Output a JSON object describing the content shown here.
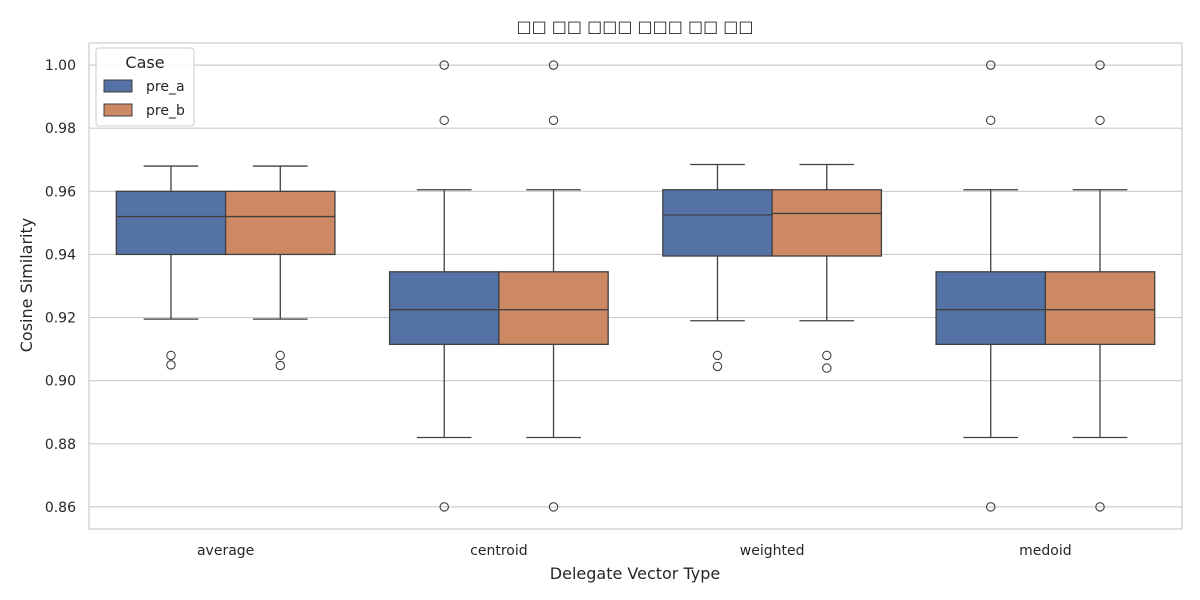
{
  "chart_data": {
    "type": "box",
    "title": "□□ □□ □□□ □□□ □□ □□",
    "xlabel": "Delegate Vector Type",
    "ylabel": "Cosine Similarity",
    "categories": [
      "average",
      "centroid",
      "weighted",
      "medoid"
    ],
    "ylim": [
      0.853,
      1.007
    ],
    "yticks": [
      0.86,
      0.88,
      0.9,
      0.92,
      0.94,
      0.96,
      0.98,
      1.0
    ],
    "ytick_labels": [
      "0.86",
      "0.88",
      "0.90",
      "0.92",
      "0.94",
      "0.96",
      "0.98",
      "1.00"
    ],
    "grid": true,
    "legend": {
      "title": "Case",
      "placement": "top-left"
    },
    "series": [
      {
        "name": "pre_a",
        "color": "#5572a6",
        "boxes": [
          {
            "whislo": 0.9195,
            "q1": 0.94,
            "med": 0.952,
            "q3": 0.96,
            "whishi": 0.968,
            "fliers": [
              0.908,
              0.905
            ]
          },
          {
            "whislo": 0.882,
            "q1": 0.9115,
            "med": 0.9225,
            "q3": 0.9345,
            "whishi": 0.9605,
            "fliers": [
              1.0,
              0.9825,
              0.86
            ]
          },
          {
            "whislo": 0.919,
            "q1": 0.9395,
            "med": 0.9525,
            "q3": 0.9605,
            "whishi": 0.9685,
            "fliers": [
              0.908,
              0.9045
            ]
          },
          {
            "whislo": 0.882,
            "q1": 0.9115,
            "med": 0.9225,
            "q3": 0.9345,
            "whishi": 0.9605,
            "fliers": [
              1.0,
              0.9825,
              0.86
            ]
          }
        ]
      },
      {
        "name": "pre_b",
        "color": "#cc8963",
        "boxes": [
          {
            "whislo": 0.9195,
            "q1": 0.94,
            "med": 0.952,
            "q3": 0.96,
            "whishi": 0.968,
            "fliers": [
              0.908,
              0.9048
            ]
          },
          {
            "whislo": 0.882,
            "q1": 0.9115,
            "med": 0.9225,
            "q3": 0.9345,
            "whishi": 0.9605,
            "fliers": [
              1.0,
              0.9825,
              0.86
            ]
          },
          {
            "whislo": 0.919,
            "q1": 0.9395,
            "med": 0.953,
            "q3": 0.9605,
            "whishi": 0.9685,
            "fliers": [
              0.908,
              0.904
            ]
          },
          {
            "whislo": 0.882,
            "q1": 0.9115,
            "med": 0.9225,
            "q3": 0.9345,
            "whishi": 0.9605,
            "fliers": [
              1.0,
              0.9825,
              0.86
            ]
          }
        ]
      }
    ]
  }
}
